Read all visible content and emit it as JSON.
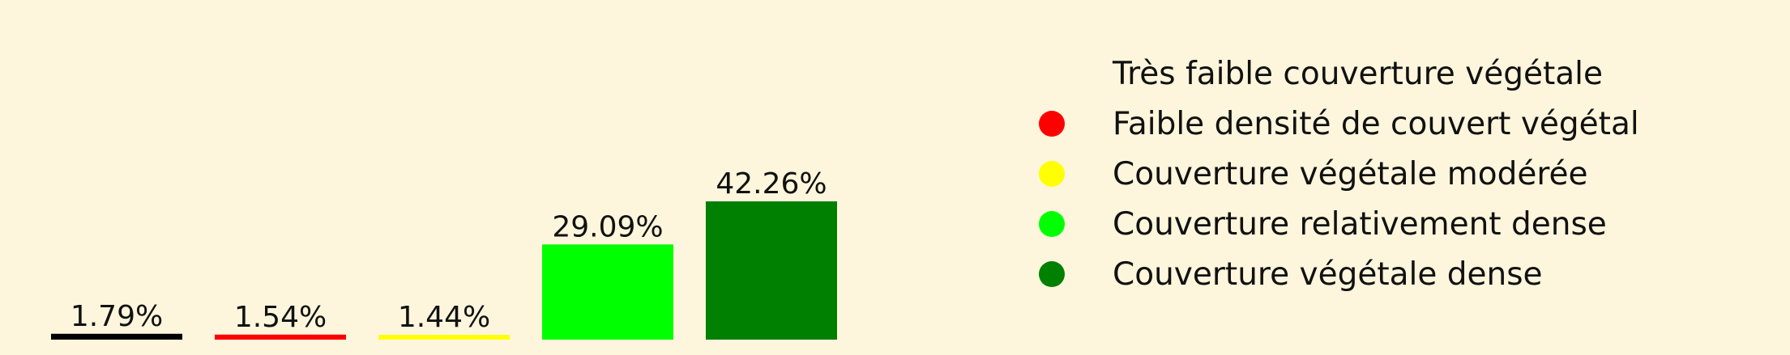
{
  "chart_data": {
    "type": "bar",
    "categories": [
      "Très faible couverture végétale",
      "Faible densité de couvert végétal",
      "Couverture végétale modérée",
      "Couverture relativement dense",
      "Couverture végétale dense"
    ],
    "values": [
      1.79,
      1.54,
      1.44,
      29.09,
      42.26
    ],
    "value_labels": [
      "1.79%",
      "1.54%",
      "1.44%",
      "29.09%",
      "42.26%"
    ],
    "colors": [
      "#000000",
      "#ff0000",
      "#ffff00",
      "#00ff00",
      "#008000"
    ],
    "background": "#fdf6dc",
    "legend_position": "right",
    "title": "",
    "xlabel": "",
    "ylabel": "",
    "ylim": [
      0,
      42.26
    ],
    "grid": false
  }
}
